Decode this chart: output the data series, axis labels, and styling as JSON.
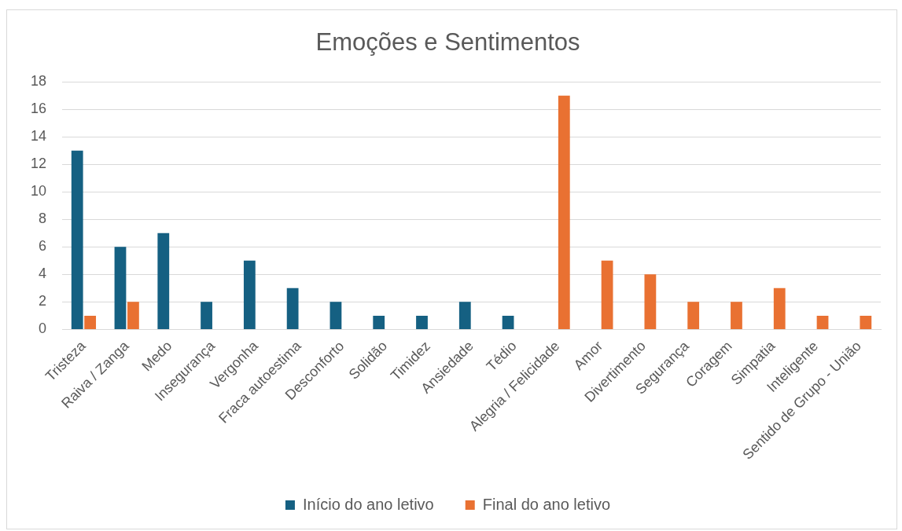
{
  "chart_data": {
    "type": "bar",
    "title": "Emoções e Sentimentos",
    "categories": [
      "Tristeza",
      "Raiva / Zanga",
      "Medo",
      "Insegurança",
      "Vergonha",
      "Fraca autoestima",
      "Desconforto",
      "Solidão",
      "Timidez",
      "Ansiedade",
      "Tédio",
      "Alegria / Felicidade",
      "Amor",
      "Divertimento",
      "Segurança",
      "Coragem",
      "Simpatia",
      "Inteligente",
      "Sentido de Grupo - União"
    ],
    "series": [
      {
        "name": "Início do ano letivo",
        "color": "#156082",
        "values": [
          13,
          6,
          7,
          2,
          5,
          3,
          2,
          1,
          1,
          2,
          1,
          null,
          null,
          null,
          null,
          null,
          null,
          null,
          null
        ]
      },
      {
        "name": "Final do ano letivo",
        "color": "#e97132",
        "values": [
          1,
          2,
          null,
          null,
          null,
          null,
          null,
          null,
          null,
          null,
          null,
          17,
          5,
          4,
          2,
          2,
          3,
          1,
          1
        ]
      }
    ],
    "ylim": [
      0,
      18
    ],
    "yticks": [
      0,
      2,
      4,
      6,
      8,
      10,
      12,
      14,
      16,
      18
    ],
    "grid": "y",
    "legend": "bottom"
  }
}
